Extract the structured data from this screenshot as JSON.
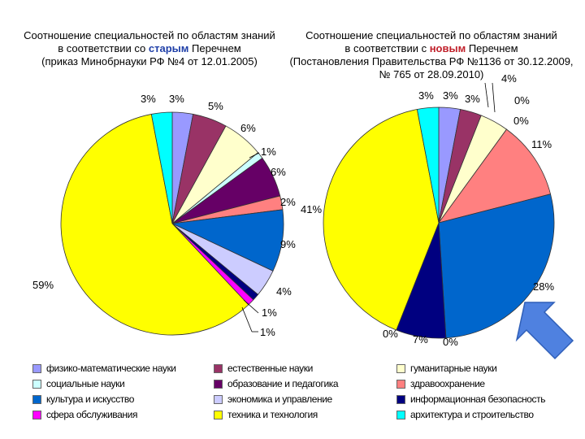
{
  "titles": {
    "left": {
      "line1": "Соотношение специальностей по областям знаний",
      "line2_pre": "в соответствии со ",
      "line2_highlight": "старым",
      "line2_post": " Перечнем",
      "line3": "(приказ Минобрнауки РФ №4 от 12.01.2005)"
    },
    "right": {
      "line1": "Соотношение специальностей по областям знаний",
      "line2_pre": "в соответствии с ",
      "line2_highlight": "новым",
      "line2_post": "  Перечнем",
      "line3": "(Постановления Правительства РФ №1136 от 30.12.2009,",
      "line4": "№ 765 от 28.09.2010)"
    }
  },
  "colors": {
    "physmath": "#9999ff",
    "natural": "#993366",
    "humanities": "#ffffcc",
    "social": "#ccffff",
    "education": "#660066",
    "health": "#ff8080",
    "culture": "#0066cc",
    "economics": "#ccccff",
    "infosec": "#000080",
    "service": "#ff00ff",
    "technology": "#ffff00",
    "architecture": "#00ffff",
    "arrow": "#4f81e0"
  },
  "chart_data": [
    {
      "type": "pie",
      "title": "Соотношение специальностей по областям знаний в соответствии со старым Перечнем (приказ Минобрнауки РФ №4 от 12.01.2005)",
      "slices": [
        {
          "category": "физико-математические науки",
          "value": 3,
          "label": "3%"
        },
        {
          "category": "естественные науки",
          "value": 5,
          "label": "5%"
        },
        {
          "category": "гуманитарные науки",
          "value": 6,
          "label": "6%"
        },
        {
          "category": "социальные науки",
          "value": 1,
          "label": "1%"
        },
        {
          "category": "образование и педагогика",
          "value": 6,
          "label": "6%"
        },
        {
          "category": "здравоохранение",
          "value": 2,
          "label": "2%"
        },
        {
          "category": "культура и искусство",
          "value": 9,
          "label": "9%"
        },
        {
          "category": "экономика и управление",
          "value": 4,
          "label": "4%"
        },
        {
          "category": "информационная безопасность",
          "value": 1,
          "label": "1%"
        },
        {
          "category": "сфера обслуживания",
          "value": 1,
          "label": "1%"
        },
        {
          "category": "техника и технология",
          "value": 59,
          "label": "59%"
        },
        {
          "category": "архитектура и строительство",
          "value": 3,
          "label": "3%"
        }
      ]
    },
    {
      "type": "pie",
      "title": "Соотношение специальностей по областям знаний в соответствии с новым Перечнем (Постановления Правительства РФ №1136 от 30.12.2009, № 765 от 28.09.2010)",
      "slices": [
        {
          "category": "физико-математические науки",
          "value": 3,
          "label": "3%"
        },
        {
          "category": "естественные науки",
          "value": 3,
          "label": "3%"
        },
        {
          "category": "гуманитарные науки",
          "value": 4,
          "label": "4%"
        },
        {
          "category": "социальные науки",
          "value": 0,
          "label": "0%"
        },
        {
          "category": "образование и педагогика",
          "value": 0,
          "label": "0%"
        },
        {
          "category": "здравоохранение",
          "value": 11,
          "label": "11%"
        },
        {
          "category": "культура и искусство",
          "value": 28,
          "label": "28%"
        },
        {
          "category": "экономика и управление",
          "value": 0,
          "label": "0%"
        },
        {
          "category": "информационная безопасность",
          "value": 7,
          "label": "7%"
        },
        {
          "category": "сфера обслуживания",
          "value": 0,
          "label": "0%"
        },
        {
          "category": "техника и технология",
          "value": 41,
          "label": "41%"
        },
        {
          "category": "архитектура и строительство",
          "value": 3,
          "label": "3%"
        }
      ]
    }
  ],
  "extra_labels": {
    "left_physmath_label": "3%",
    "right_physmath_label": "3%",
    "right_natural_label": "3%",
    "right_humanities_label": "4%"
  },
  "legend": [
    {
      "key": "physmath",
      "label": "физико-математические науки"
    },
    {
      "key": "natural",
      "label": "естественные науки"
    },
    {
      "key": "humanities",
      "label": "гуманитарные науки"
    },
    {
      "key": "social",
      "label": "социальные науки"
    },
    {
      "key": "education",
      "label": "образование и педагогика"
    },
    {
      "key": "health",
      "label": "здравоохранение"
    },
    {
      "key": "culture",
      "label": "культура и искусство"
    },
    {
      "key": "economics",
      "label": "экономика и управление"
    },
    {
      "key": "infosec",
      "label": "информационная безопасность"
    },
    {
      "key": "service",
      "label": "сфера обслуживания"
    },
    {
      "key": "technology",
      "label": "техника и технология"
    },
    {
      "key": "architecture",
      "label": "архитектура и строительство"
    }
  ]
}
